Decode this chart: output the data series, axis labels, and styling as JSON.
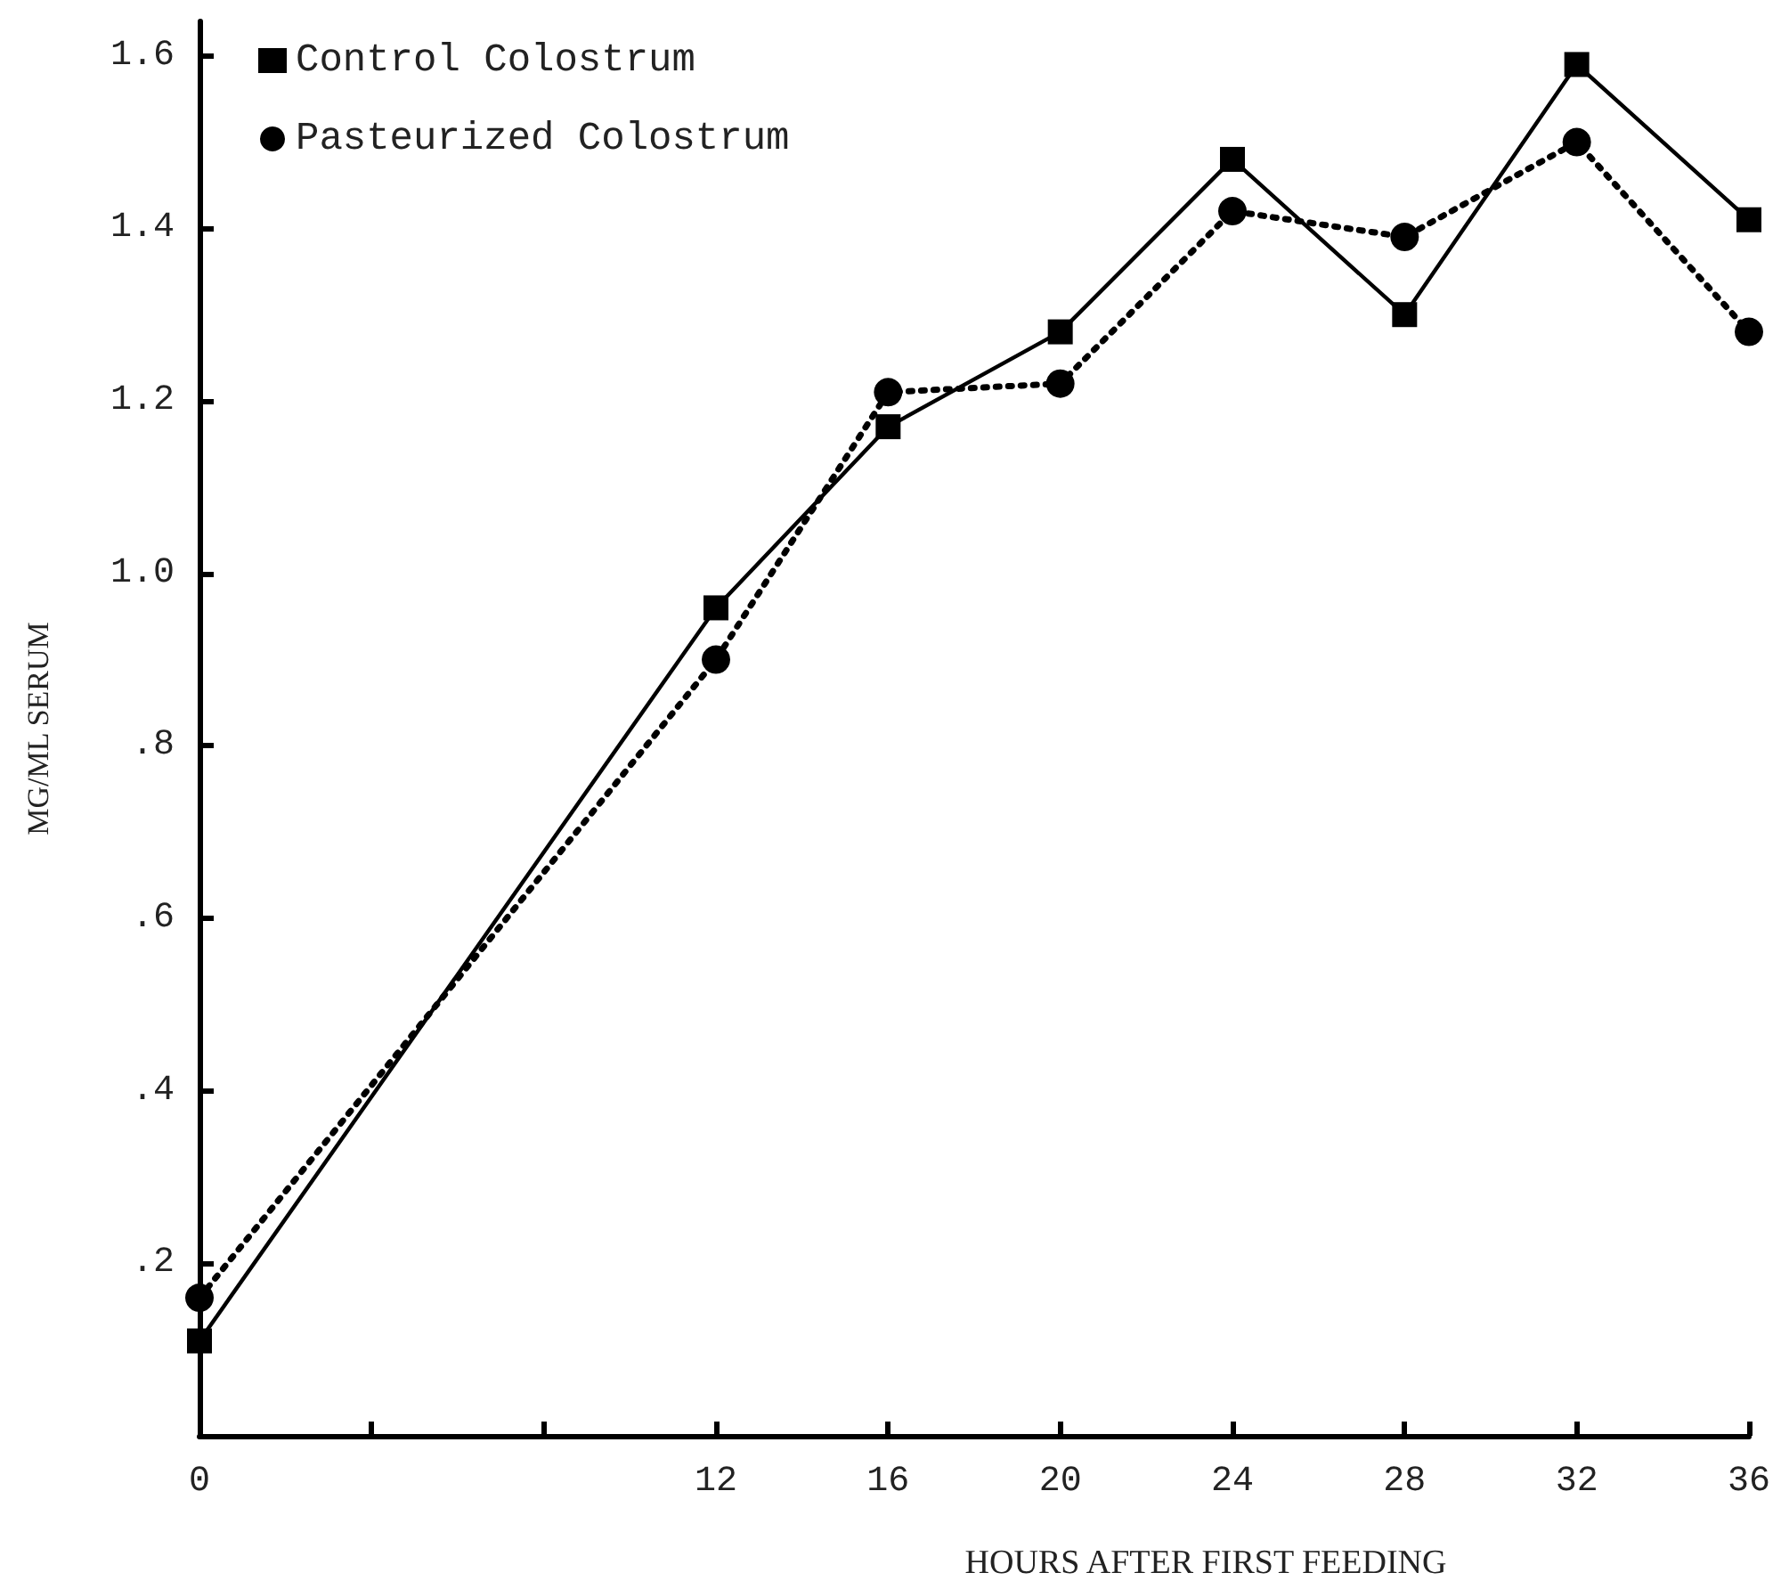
{
  "chart_data": {
    "type": "line",
    "xlabel": "HOURS AFTER FIRST FEEDING",
    "ylabel": "MG/ML SERUM",
    "x": [
      0,
      12,
      16,
      20,
      24,
      28,
      32,
      36
    ],
    "series": [
      {
        "name": "Control Colostrum",
        "color": "#000000",
        "marker": "square",
        "line_style": "solid",
        "values": [
          0.11,
          0.96,
          1.17,
          1.28,
          1.48,
          1.3,
          1.59,
          1.41
        ]
      },
      {
        "name": "Pasteurized Colostrum",
        "color": "#000000",
        "marker": "circle",
        "line_style": "dotted",
        "values": [
          0.16,
          0.9,
          1.21,
          1.22,
          1.42,
          1.39,
          1.5,
          1.28
        ]
      }
    ],
    "xlim": [
      0,
      36
    ],
    "xticks": [
      0,
      {
        "value": 4,
        "label": null
      },
      {
        "value": 8,
        "label": null
      },
      12,
      16,
      20,
      24,
      28,
      32,
      36
    ],
    "ylim": [
      0,
      1.64
    ],
    "yticks": [
      {
        "value": 0.2,
        "label": ".2"
      },
      {
        "value": 0.4,
        "label": ".4"
      },
      {
        "value": 0.6,
        "label": ".6"
      },
      {
        "value": 0.8,
        "label": ".8"
      },
      {
        "value": 1.0,
        "label": "1.0"
      },
      {
        "value": 1.2,
        "label": "1.2"
      },
      {
        "value": 1.4,
        "label": "1.4"
      },
      {
        "value": 1.6,
        "label": "1.6"
      }
    ],
    "grid": false,
    "legend": "top left"
  }
}
